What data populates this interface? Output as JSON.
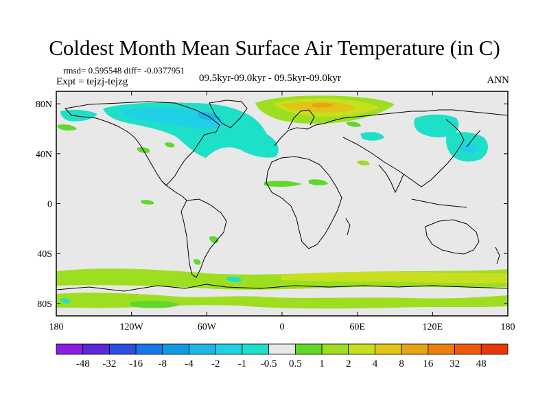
{
  "title": "Coldest Month Mean Surface Air Temperature (in C)",
  "stats_line": "rmsd= 0.595548  diff= -0.0377951",
  "experiment": "Expt = tejzj-tejzg",
  "period": "09.5kyr-09.0kyr - 09.5kyr-09.0kyr",
  "season": "ANN",
  "map": {
    "lon_ticks": [
      "180",
      "120W",
      "60W",
      "0",
      "60E",
      "120E",
      "180"
    ],
    "lat_ticks": [
      "80N",
      "40N",
      "0",
      "40S",
      "80S"
    ],
    "background_color": "#e8e8e8"
  },
  "colorbar": {
    "labels": [
      "-48",
      "-32",
      "-16",
      "-8",
      "-4",
      "-2",
      "-1",
      "-0.5",
      "0.5",
      "1",
      "2",
      "4",
      "8",
      "16",
      "32",
      "48"
    ],
    "colors": [
      "#8c1ee0",
      "#5a2ad6",
      "#2c4fe0",
      "#1577e8",
      "#1199e2",
      "#1fb6e6",
      "#1fd0e6",
      "#1ee0c8",
      "#e8e8e8",
      "#5fd82a",
      "#9ede20",
      "#c6e020",
      "#e0c418",
      "#e6a414",
      "#ea7e10",
      "#ee5a0c",
      "#e8380a"
    ]
  }
}
